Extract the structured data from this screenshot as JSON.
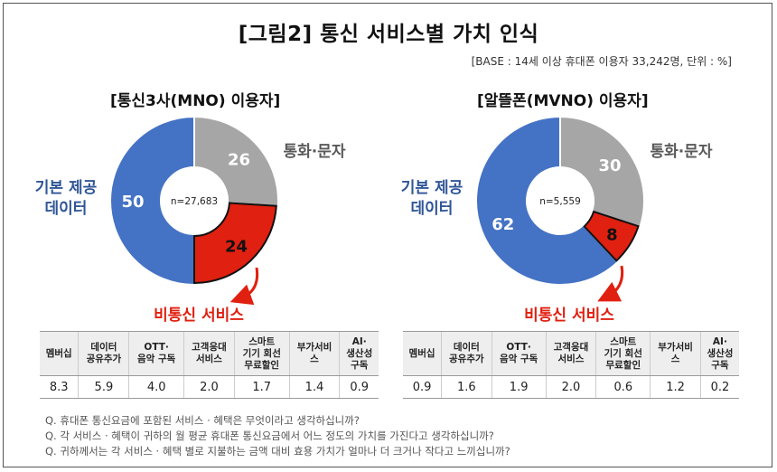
{
  "title": "[그림2] 통신 서비스별 가치 인식",
  "base_note": "[BASE : 14세 이상 휴대폰 이용자 33,242명, 단위 : %]",
  "colors": {
    "data": "#4472C4",
    "call": "#A6A6A6",
    "non_telecom": "#E02010",
    "non_telecom_label": "#E02010",
    "data_label": "#2F5597"
  },
  "chart_data": [
    {
      "type": "pie",
      "title": "[통신3사(MNO) 이용자]",
      "center_label": "n=27,683",
      "slices": [
        {
          "label": "통화·문자",
          "value": 26
        },
        {
          "label": "비통신 서비스",
          "value": 24
        },
        {
          "label": "기본 제공 데이터",
          "value": 50
        }
      ],
      "table": {
        "headers": [
          "멤버십",
          "데이터 공유추가",
          "OTT· 음악 구독",
          "고객응대 서비스",
          "스마트 기기 회선 무료할인",
          "부가서비스",
          "AI· 생산성 구독"
        ],
        "values": [
          "8.3",
          "5.9",
          "4.0",
          "2.0",
          "1.7",
          "1.4",
          "0.9"
        ]
      }
    },
    {
      "type": "pie",
      "title": "[알뜰폰(MVNO) 이용자]",
      "center_label": "n=5,559",
      "slices": [
        {
          "label": "통화·문자",
          "value": 30
        },
        {
          "label": "비통신 서비스",
          "value": 8
        },
        {
          "label": "기본 제공 데이터",
          "value": 62
        }
      ],
      "table": {
        "headers": [
          "멤버십",
          "데이터 공유추가",
          "OTT· 음악 구독",
          "고객응대 서비스",
          "스마트 기기 회선 무료할인",
          "부가서비스",
          "AI· 생산성 구독"
        ],
        "values": [
          "0.9",
          "1.6",
          "1.9",
          "2.0",
          "0.6",
          "1.2",
          "0.2"
        ]
      }
    }
  ],
  "labels": {
    "call": "통화·문자",
    "data_line1": "기본 제공",
    "data_line2": "데이터",
    "non_telecom": "비통신 서비스"
  },
  "table_headers": [
    [
      "멤버십"
    ],
    [
      "데이터",
      "공유추가"
    ],
    [
      "OTT·",
      "음악 구독"
    ],
    [
      "고객응대",
      "서비스"
    ],
    [
      "스마트",
      "기기 회선",
      "무료할인"
    ],
    [
      "부가서비",
      "스"
    ],
    [
      "AI·",
      "생산성",
      "구독"
    ]
  ],
  "notes": [
    "Q. 휴대폰 통신요금에 포함된 서비스 · 혜택은 무엇이라고 생각하십니까?",
    "Q. 각 서비스 · 혜택이 귀하의 월 평균 휴대폰 통신요금에서 어느 정도의 가치를 가진다고 생각하십니까?",
    "Q. 귀하께서는 각 서비스 · 혜택 별로 지불하는 금액 대비 효용 가치가 얼마나 더 크거나 작다고 느끼십니까?"
  ]
}
